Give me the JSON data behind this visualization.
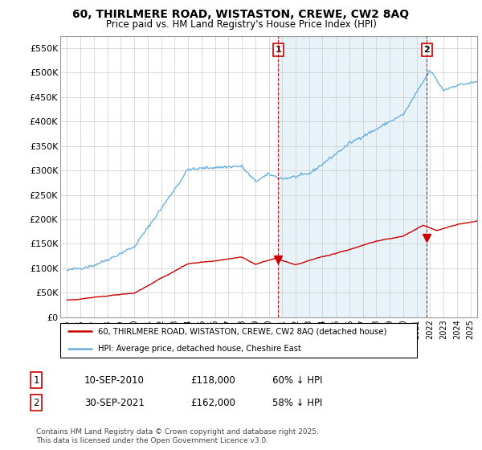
{
  "title": "60, THIRLMERE ROAD, WISTASTON, CREWE, CW2 8AQ",
  "subtitle": "Price paid vs. HM Land Registry's House Price Index (HPI)",
  "ylabel_ticks": [
    "£0",
    "£50K",
    "£100K",
    "£150K",
    "£200K",
    "£250K",
    "£300K",
    "£350K",
    "£400K",
    "£450K",
    "£500K",
    "£550K"
  ],
  "ytick_values": [
    0,
    50000,
    100000,
    150000,
    200000,
    250000,
    300000,
    350000,
    400000,
    450000,
    500000,
    550000
  ],
  "xlim": [
    1994.5,
    2025.5
  ],
  "ylim": [
    0,
    575000
  ],
  "hpi_color": "#6ab0de",
  "hpi_fill_color": "#daeaf5",
  "price_color": "#cc0000",
  "transaction1_date": 2010.7,
  "transaction1_price": 118000,
  "transaction2_date": 2021.75,
  "transaction2_price": 162000,
  "legend_label1": "60, THIRLMERE ROAD, WISTASTON, CREWE, CW2 8AQ (detached house)",
  "legend_label2": "HPI: Average price, detached house, Cheshire East",
  "table_row1": [
    "1",
    "10-SEP-2010",
    "£118,000",
    "60% ↓ HPI"
  ],
  "table_row2": [
    "2",
    "30-SEP-2021",
    "£162,000",
    "58% ↓ HPI"
  ],
  "footer": "Contains HM Land Registry data © Crown copyright and database right 2025.\nThis data is licensed under the Open Government Licence v3.0.",
  "background_color": "#ffffff",
  "grid_color": "#cccccc"
}
